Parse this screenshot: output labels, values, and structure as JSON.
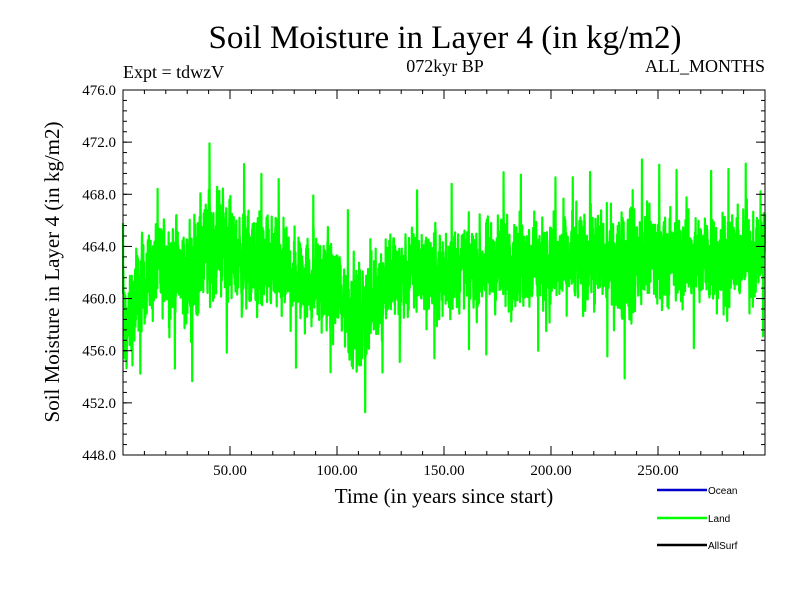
{
  "chart_data": {
    "type": "line",
    "title": "Soil Moisture in Layer 4 (in kg/m2)",
    "experiment": "Expt = tdwzV",
    "period": "072kyr BP",
    "months": "ALL_MONTHS",
    "xlabel": "Time (in years since start)",
    "ylabel": "Soil Moisture in Layer 4 (in kg/m2)",
    "xlim": [
      0,
      300
    ],
    "ylim": [
      448,
      476
    ],
    "x_ticks": [
      50,
      100,
      150,
      200,
      250
    ],
    "x_tick_labels": [
      "50.00",
      "100.00",
      "150.00",
      "200.00",
      "250.00"
    ],
    "y_ticks": [
      448,
      452,
      456,
      460,
      464,
      468,
      472,
      476
    ],
    "y_tick_labels": [
      "448.0",
      "452.0",
      "456.0",
      "460.0",
      "464.0",
      "468.0",
      "472.0",
      "476.0"
    ],
    "grid": false,
    "legend_position": "bottom-right",
    "series": [
      {
        "name": "Ocean",
        "color": "#0000cc",
        "values": []
      },
      {
        "name": "Land",
        "color": "#00ff00",
        "sampling": "monthly",
        "x_start": 0,
        "x_end": 300,
        "mean": 462.5,
        "min": 449.5,
        "max": 473.3,
        "envelope_x": [
          0,
          2,
          5,
          10,
          20,
          30,
          35,
          40,
          45,
          50,
          60,
          70,
          80,
          90,
          100,
          105,
          110,
          115,
          120,
          130,
          140,
          150,
          160,
          170,
          180,
          190,
          200,
          210,
          220,
          230,
          235,
          240,
          250,
          260,
          270,
          280,
          290,
          300
        ],
        "envelope_low": [
          451,
          450.2,
          452.5,
          455,
          455.5,
          453,
          454,
          455.5,
          456,
          455.5,
          455,
          455,
          454.5,
          454.5,
          454,
          452,
          449.5,
          452,
          454,
          455,
          455.5,
          455,
          456,
          455.5,
          456,
          456,
          455.5,
          456,
          456,
          455,
          453.5,
          455,
          455.5,
          456,
          456,
          456,
          456,
          457
        ],
        "envelope_high": [
          466,
          465,
          467,
          468,
          469,
          470,
          471.5,
          472,
          473.3,
          471.5,
          470,
          469.5,
          469,
          468,
          468,
          467,
          466,
          467,
          468,
          468.5,
          468.5,
          469,
          469,
          469.5,
          470,
          469.5,
          469.5,
          469.5,
          470,
          470.5,
          472.5,
          471,
          470.5,
          470,
          470,
          470,
          470.5,
          471
        ]
      },
      {
        "name": "AllSurf",
        "color": "#000000",
        "values": []
      }
    ]
  }
}
